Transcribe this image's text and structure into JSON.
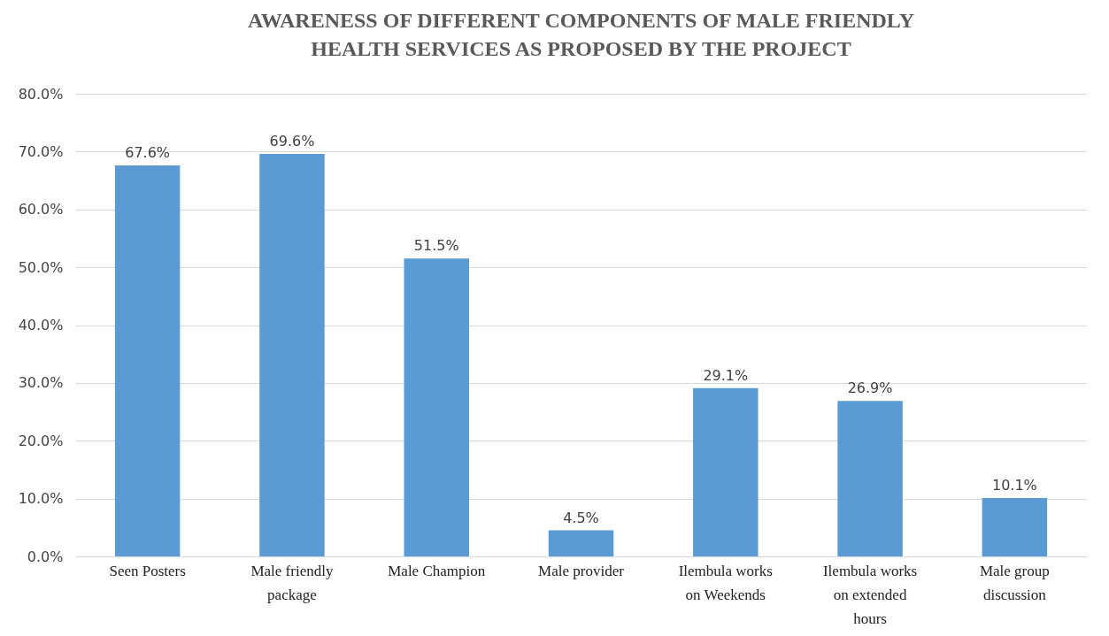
{
  "chart_data": {
    "type": "bar",
    "title": "AWARENESS OF DIFFERENT COMPONENTS OF MALE FRIENDLY HEALTH SERVICES AS PROPOSED BY THE PROJECT",
    "categories": [
      "Seen Posters",
      "Male friendly package",
      "Male Champion",
      "Male provider",
      "Ilembula works on Weekends",
      "Ilembula works on extended hours",
      "Male group discussion"
    ],
    "values": [
      67.6,
      69.6,
      51.5,
      4.5,
      29.1,
      26.9,
      10.1
    ],
    "value_labels": [
      "67.6%",
      "69.6%",
      "51.5%",
      "4.5%",
      "29.1%",
      "26.9%",
      "10.1%"
    ],
    "color": "#5b9bd5",
    "ylim": [
      0,
      80
    ],
    "yticks": [
      {
        "value": 0,
        "label": "0.0%"
      },
      {
        "value": 10,
        "label": "10.0%"
      },
      {
        "value": 20,
        "label": "20.0%"
      },
      {
        "value": 30,
        "label": "30.0%"
      },
      {
        "value": 40,
        "label": "40.0%"
      },
      {
        "value": 50,
        "label": "50.0%"
      },
      {
        "value": 60,
        "label": "60.0%"
      },
      {
        "value": 70,
        "label": "70.0%"
      },
      {
        "value": 80,
        "label": "80.0%"
      }
    ],
    "grid": "y"
  }
}
